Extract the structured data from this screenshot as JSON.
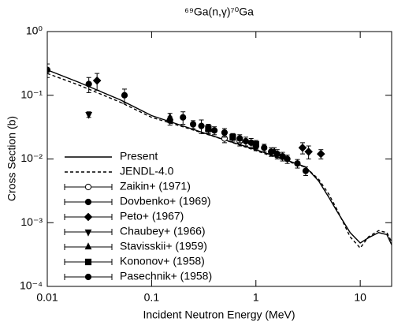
{
  "chart_data": {
    "type": "line",
    "title": "⁶⁹Ga(n,γ)⁷⁰Ga",
    "x_label": "Incident Neutron Energy (MeV)",
    "y_label": "Cross Section (b)",
    "xscale": "log",
    "yscale": "log",
    "xlim": [
      0.01,
      20
    ],
    "ylim": [
      0.0001,
      1
    ],
    "xticks": [
      0.01,
      0.1,
      1,
      10
    ],
    "yticks": [
      {
        "value": 0.0001,
        "label": "10⁻⁴"
      },
      {
        "value": 0.001,
        "label": "10⁻³"
      },
      {
        "value": 0.01,
        "label": "10⁻²"
      },
      {
        "value": 0.1,
        "label": "10⁻¹"
      },
      {
        "value": 1,
        "label": "10⁰"
      }
    ],
    "legend": "lower left",
    "series": [
      {
        "name": "Present",
        "style": "solid",
        "color": "#000000",
        "x": [
          0.01,
          0.02,
          0.05,
          0.1,
          0.2,
          0.5,
          1,
          2,
          3,
          4,
          5,
          6,
          8,
          10,
          12,
          15,
          18,
          20
        ],
        "values": [
          0.25,
          0.16,
          0.085,
          0.048,
          0.033,
          0.02,
          0.014,
          0.0095,
          0.0075,
          0.0045,
          0.0025,
          0.0015,
          0.0007,
          0.00048,
          0.00058,
          0.0007,
          0.00065,
          0.00045
        ]
      },
      {
        "name": "JENDL-4.0",
        "style": "dashed",
        "color": "#000000",
        "x": [
          0.01,
          0.02,
          0.05,
          0.1,
          0.2,
          0.5,
          1,
          2,
          3,
          4,
          5,
          6,
          8,
          10,
          12,
          15,
          18,
          20
        ],
        "values": [
          0.22,
          0.145,
          0.078,
          0.045,
          0.032,
          0.02,
          0.0135,
          0.0092,
          0.0074,
          0.0048,
          0.0028,
          0.0016,
          0.0006,
          0.0004,
          0.0006,
          0.00075,
          0.0007,
          0.0005
        ]
      },
      {
        "name": "Zaikin+ (1971)",
        "style": "points",
        "marker": "open-circle",
        "color": "#000000",
        "x": [
          0.5,
          0.7,
          1.0
        ],
        "values": [
          0.021,
          0.019,
          0.016
        ],
        "errors": [
          0.003,
          0.003,
          0.002
        ]
      },
      {
        "name": "Dovbenko+ (1969)",
        "style": "points",
        "marker": "circle",
        "color": "#000000",
        "x": [
          0.15,
          0.25,
          0.4,
          0.5,
          0.6,
          0.7,
          0.8,
          0.9,
          1.0,
          1.2,
          1.4,
          1.6,
          1.8,
          2.0,
          2.5,
          3.0
        ],
        "values": [
          0.04,
          0.035,
          0.028,
          0.026,
          0.022,
          0.021,
          0.019,
          0.018,
          0.016,
          0.015,
          0.013,
          0.012,
          0.011,
          0.01,
          0.0085,
          0.0065
        ],
        "errors": [
          0.006,
          0.005,
          0.004,
          0.004,
          0.003,
          0.003,
          0.003,
          0.003,
          0.0025,
          0.002,
          0.002,
          0.002,
          0.0017,
          0.0015,
          0.0013,
          0.001
        ]
      },
      {
        "name": "Peto+ (1967)",
        "style": "points",
        "marker": "diamond",
        "color": "#000000",
        "x": [
          0.03,
          2.8,
          3.2,
          4.2
        ],
        "values": [
          0.17,
          0.015,
          0.013,
          0.012
        ],
        "errors": [
          0.05,
          0.003,
          0.003,
          0.002
        ]
      },
      {
        "name": "Chaubey+ (1966)",
        "style": "points",
        "marker": "down-triangle",
        "color": "#000000",
        "x": [
          0.025
        ],
        "values": [
          0.05
        ],
        "errors": [
          0.005
        ]
      },
      {
        "name": "Stavisskii+ (1959)",
        "style": "points",
        "marker": "up-triangle",
        "color": "#000000",
        "x": [
          0.15,
          0.35,
          1.5
        ],
        "values": [
          0.045,
          0.03,
          0.013
        ],
        "errors": [
          0.007,
          0.005,
          0.002
        ]
      },
      {
        "name": "Kononov+ (1958)",
        "style": "points",
        "marker": "square",
        "color": "#000000",
        "x": [
          0.35,
          0.6,
          1.0
        ],
        "values": [
          0.03,
          0.022,
          0.017
        ],
        "errors": [
          0.004,
          0.003,
          0.0025
        ]
      },
      {
        "name": "Pasechnik+ (1958)",
        "style": "points",
        "marker": "circle",
        "color": "#000000",
        "x": [
          0.01,
          0.025,
          0.055,
          0.2,
          0.3
        ],
        "values": [
          0.25,
          0.15,
          0.1,
          0.045,
          0.033
        ],
        "errors": [
          0.06,
          0.04,
          0.025,
          0.01,
          0.008
        ]
      }
    ]
  }
}
